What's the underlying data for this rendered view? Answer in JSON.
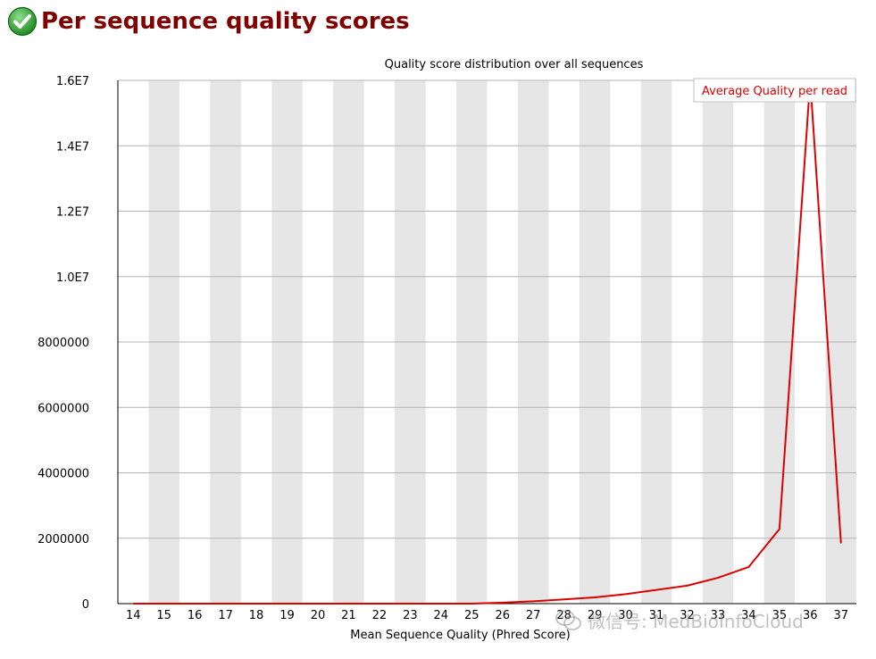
{
  "header": {
    "title": "Per sequence quality scores",
    "status_icon": "check-circle-icon",
    "status_color": "#2e9e2e"
  },
  "chart_data": {
    "type": "line",
    "title": "Quality score distribution over all sequences",
    "xlabel": "Mean Sequence Quality (Phred Score)",
    "ylabel": "",
    "categories": [
      14,
      15,
      16,
      17,
      18,
      19,
      20,
      21,
      22,
      23,
      24,
      25,
      26,
      27,
      28,
      29,
      30,
      31,
      32,
      33,
      34,
      35,
      36,
      37
    ],
    "x_tick_labels": [
      "14",
      "15",
      "16",
      "17",
      "18",
      "19",
      "20",
      "21",
      "22",
      "23",
      "24",
      "25",
      "26",
      "27",
      "28",
      "29",
      "30",
      "31",
      "32",
      "33",
      "34",
      "35",
      "36",
      "37"
    ],
    "y_tick_labels": [
      "0",
      "2000000",
      "4000000",
      "6000000",
      "8000000",
      "1.0E7",
      "1.2E7",
      "1.4E7",
      "1.6E7"
    ],
    "ylim": [
      0,
      16000000
    ],
    "series": [
      {
        "name": "Average Quality per read",
        "color": "#dd0000",
        "values": [
          0,
          0,
          0,
          0,
          0,
          0,
          0,
          0,
          0,
          0,
          0,
          0,
          30000,
          70000,
          130000,
          190000,
          290000,
          420000,
          550000,
          790000,
          1120000,
          2280000,
          16000000,
          1860000
        ]
      }
    ],
    "legend_position": "top-right",
    "grid": true,
    "band_color": "#e6e6e6",
    "grid_color": "#b4b4b4"
  },
  "watermark": {
    "text": "微信号: MedBioInfoCloud",
    "icon": "wechat-icon"
  }
}
